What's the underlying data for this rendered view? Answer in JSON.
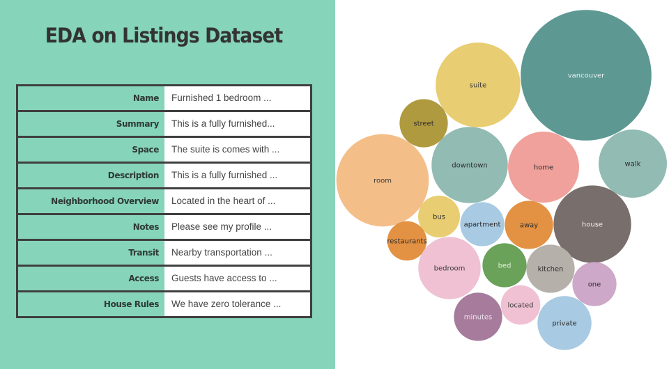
{
  "title": "EDA on Listings Dataset",
  "table": [
    {
      "label": "Name",
      "value": "Furnished 1 bedroom ..."
    },
    {
      "label": "Summary",
      "value": "This is a fully furnished..."
    },
    {
      "label": "Space",
      "value": "The suite is comes with ..."
    },
    {
      "label": "Description",
      "value": "This is a fully furnished ..."
    },
    {
      "label": "Neighborhood Overview",
      "value": "Located in the heart of ..."
    },
    {
      "label": "Notes",
      "value": "Please see my profile ..."
    },
    {
      "label": "Transit",
      "value": "Nearby transportation ..."
    },
    {
      "label": "Access",
      "value": "Guests have access to ..."
    },
    {
      "label": "House Rules",
      "value": "We have zero tolerance ..."
    }
  ],
  "chart_data": {
    "type": "bubble",
    "size_note_relative": true,
    "bubbles": [
      {
        "word": "vancouver",
        "size": 88,
        "color": "#5d9893",
        "text_color": "#e8f0ef"
      },
      {
        "word": "suite",
        "size": 37,
        "color": "#e8cd72",
        "text_color": "#3a3a3a"
      },
      {
        "word": "street",
        "size": 12,
        "color": "#b09a40",
        "text_color": "#2e2e2e"
      },
      {
        "word": "room",
        "size": 44,
        "color": "#f4be88",
        "text_color": "#3a3a3a"
      },
      {
        "word": "downtown",
        "size": 30,
        "color": "#92bbb3",
        "text_color": "#2e2e2e"
      },
      {
        "word": "home",
        "size": 26,
        "color": "#f0a19b",
        "text_color": "#2e2e2e"
      },
      {
        "word": "walk",
        "size": 24,
        "color": "#92bbb3",
        "text_color": "#2e2e2e"
      },
      {
        "word": "bus",
        "size": 9,
        "color": "#e8cd72",
        "text_color": "#2e2e2e"
      },
      {
        "word": "apartment",
        "size": 10,
        "color": "#a8cae3",
        "text_color": "#2e2e2e"
      },
      {
        "word": "away",
        "size": 12,
        "color": "#e39142",
        "text_color": "#2e2e2e"
      },
      {
        "word": "house",
        "size": 31,
        "color": "#786e6c",
        "text_color": "#eeeeee"
      },
      {
        "word": "restaurants",
        "size": 8,
        "color": "#e39142",
        "text_color": "#2e2e2e"
      },
      {
        "word": "bedroom",
        "size": 20,
        "color": "#efc1d2",
        "text_color": "#3a3a3a"
      },
      {
        "word": "bed",
        "size": 10,
        "color": "#6aa259",
        "text_color": "#e5f0e0"
      },
      {
        "word": "kitchen",
        "size": 12,
        "color": "#b6b0ab",
        "text_color": "#2e2e2e"
      },
      {
        "word": "one",
        "size": 10,
        "color": "#cda8c8",
        "text_color": "#2e2e2e"
      },
      {
        "word": "located",
        "size": 8,
        "color": "#efc1d2",
        "text_color": "#3a3a3a"
      },
      {
        "word": "minutes",
        "size": 12,
        "color": "#a67b9c",
        "text_color": "#f0e6ee"
      },
      {
        "word": "private",
        "size": 15,
        "color": "#a8cae3",
        "text_color": "#2e2e2e"
      }
    ]
  }
}
